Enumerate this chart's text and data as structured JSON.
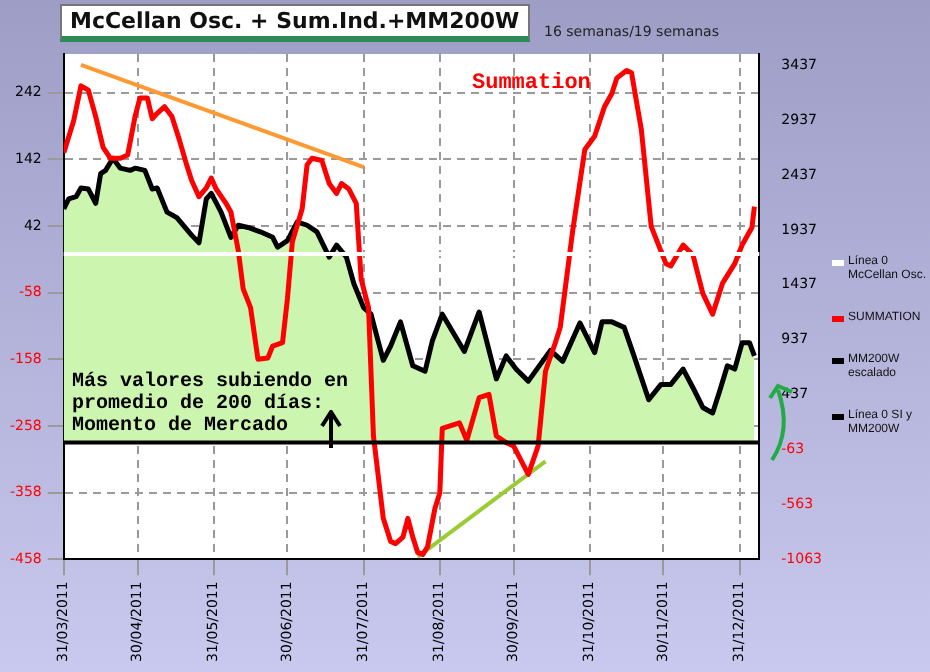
{
  "chart_data": {
    "type": "line",
    "title": "McCellan Osc. + Sum.Ind.+MM200W",
    "subtitle": "16 semanas/19 semanas",
    "annotations": [
      "Summation",
      "Más valores subiendo en promedio de 200 días: Momento de Mercado"
    ],
    "xlim": [
      "2011-03-31",
      "2012-01-08"
    ],
    "xticks": [
      {
        "value": "2011-03-31",
        "label": "31/03/2011"
      },
      {
        "value": "2011-04-30",
        "label": "30/04/2011"
      },
      {
        "value": "2011-05-31",
        "label": "31/05/2011"
      },
      {
        "value": "2011-06-30",
        "label": "30/06/2011"
      },
      {
        "value": "2011-07-31",
        "label": "31/07/2011"
      },
      {
        "value": "2011-08-31",
        "label": "31/08/2011"
      },
      {
        "value": "2011-09-30",
        "label": "30/09/2011"
      },
      {
        "value": "2011-10-31",
        "label": "31/10/2011"
      },
      {
        "value": "2011-11-30",
        "label": "30/11/2011"
      },
      {
        "value": "2011-12-31",
        "label": "31/12/2011"
      }
    ],
    "ylim": [
      -458,
      300
    ],
    "yticks": [
      -458,
      -358,
      -258,
      -158,
      -58,
      42,
      142,
      242
    ],
    "y2lim": [
      -1063,
      3540
    ],
    "y2ticks": [
      -1063,
      -563,
      -63,
      437,
      937,
      1437,
      1937,
      2437,
      2937,
      3437
    ],
    "grid": true,
    "legend": "right",
    "ref_lines": [
      {
        "axis": "y",
        "value": 0,
        "label": "Línea 0 McCellan Osc.",
        "color": "#ffffff"
      },
      {
        "axis": "y2",
        "value": 0,
        "label": "Línea 0 SI y MM200W",
        "color": "#000000"
      }
    ],
    "series": [
      {
        "name": "SUMMATION",
        "type": "line",
        "axis": "y2",
        "color": "#ff0000",
        "x": [
          "2011-03-31",
          "2011-04-04",
          "2011-04-07",
          "2011-04-10",
          "2011-04-13",
          "2011-04-16",
          "2011-04-19",
          "2011-04-23",
          "2011-04-26",
          "2011-04-29",
          "2011-05-01",
          "2011-05-04",
          "2011-05-06",
          "2011-05-08",
          "2011-05-11",
          "2011-05-14",
          "2011-05-17",
          "2011-05-20",
          "2011-05-22",
          "2011-05-25",
          "2011-05-28",
          "2011-05-30",
          "2011-06-01",
          "2011-06-05",
          "2011-06-07",
          "2011-06-10",
          "2011-06-12",
          "2011-06-15",
          "2011-06-18",
          "2011-06-22",
          "2011-06-24",
          "2011-06-28",
          "2011-06-30",
          "2011-07-02",
          "2011-07-06",
          "2011-07-08",
          "2011-07-10",
          "2011-07-14",
          "2011-07-17",
          "2011-07-20",
          "2011-07-22",
          "2011-07-25",
          "2011-07-28",
          "2011-07-30",
          "2011-08-02",
          "2011-08-04",
          "2011-08-08",
          "2011-08-11",
          "2011-08-13",
          "2011-08-16",
          "2011-08-18",
          "2011-08-20",
          "2011-08-22",
          "2011-08-24",
          "2011-08-26",
          "2011-08-29",
          "2011-08-31",
          "2011-09-01",
          "2011-09-08",
          "2011-09-11",
          "2011-09-16",
          "2011-09-20",
          "2011-09-23",
          "2011-09-27",
          "2011-09-30",
          "2011-10-06",
          "2011-10-10",
          "2011-10-13",
          "2011-10-17",
          "2011-10-19",
          "2011-10-24",
          "2011-10-29",
          "2011-11-02",
          "2011-11-06",
          "2011-11-09",
          "2011-11-11",
          "2011-11-15",
          "2011-11-17",
          "2011-11-21",
          "2011-11-25",
          "2011-12-01",
          "2011-12-03",
          "2011-12-08",
          "2011-12-12",
          "2011-12-16",
          "2011-12-20",
          "2011-12-24",
          "2011-12-29",
          "2012-01-01",
          "2012-01-05",
          "2012-01-06"
        ],
        "values": [
          2640,
          2930,
          3250,
          3210,
          2970,
          2690,
          2590,
          2590,
          2620,
          2970,
          3140,
          3140,
          2950,
          3000,
          3060,
          2970,
          2760,
          2530,
          2390,
          2240,
          2320,
          2410,
          2310,
          2180,
          2100,
          1750,
          1400,
          1230,
          760,
          770,
          880,
          910,
          1310,
          1830,
          2130,
          2530,
          2590,
          2570,
          2360,
          2270,
          2360,
          2310,
          2180,
          1490,
          1230,
          60,
          -690,
          -900,
          -920,
          -860,
          -690,
          -860,
          -1000,
          -1020,
          -950,
          -600,
          -460,
          130,
          180,
          20,
          410,
          440,
          60,
          0,
          -30,
          -290,
          -30,
          650,
          910,
          1050,
          1920,
          2670,
          2790,
          3060,
          3180,
          3320,
          3390,
          3370,
          2850,
          1970,
          1630,
          1610,
          1800,
          1710,
          1360,
          1170,
          1450,
          1630,
          1800,
          1960,
          2150
        ]
      },
      {
        "name": "MM200W escalado",
        "type": "area",
        "axis": "y2",
        "color": "#000000",
        "x": [
          "2011-03-31",
          "2011-04-02",
          "2011-04-05",
          "2011-04-07",
          "2011-04-10",
          "2011-04-13",
          "2011-04-15",
          "2011-04-17",
          "2011-04-20",
          "2011-04-23",
          "2011-04-27",
          "2011-04-29",
          "2011-05-03",
          "2011-05-06",
          "2011-05-08",
          "2011-05-12",
          "2011-05-16",
          "2011-05-22",
          "2011-05-25",
          "2011-05-28",
          "2011-05-30",
          "2011-06-03",
          "2011-06-07",
          "2011-06-10",
          "2011-06-14",
          "2011-06-19",
          "2011-06-24",
          "2011-06-26",
          "2011-06-30",
          "2011-07-04",
          "2011-07-08",
          "2011-07-12",
          "2011-07-17",
          "2011-07-20",
          "2011-07-24",
          "2011-07-27",
          "2011-07-31",
          "2011-08-03",
          "2011-08-08",
          "2011-08-11",
          "2011-08-15",
          "2011-08-20",
          "2011-08-25",
          "2011-08-28",
          "2011-09-01",
          "2011-09-10",
          "2011-09-16",
          "2011-09-23",
          "2011-09-27",
          "2011-10-01",
          "2011-10-06",
          "2011-10-15",
          "2011-10-20",
          "2011-10-27",
          "2011-11-02",
          "2011-11-05",
          "2011-11-09",
          "2011-11-14",
          "2011-11-18",
          "2011-11-24",
          "2011-11-29",
          "2011-12-03",
          "2011-12-08",
          "2011-12-12",
          "2011-12-16",
          "2011-12-20",
          "2011-12-23",
          "2011-12-26",
          "2011-12-29",
          "2012-01-01",
          "2012-01-04",
          "2012-01-06"
        ],
        "values": [
          2130,
          2220,
          2240,
          2320,
          2310,
          2180,
          2450,
          2480,
          2590,
          2500,
          2480,
          2500,
          2480,
          2310,
          2320,
          2100,
          2050,
          1890,
          1820,
          2220,
          2270,
          2100,
          1870,
          1980,
          1960,
          1920,
          1870,
          1780,
          1840,
          2010,
          1980,
          1920,
          1690,
          1800,
          1690,
          1450,
          1230,
          1170,
          750,
          880,
          1100,
          700,
          650,
          930,
          1170,
          830,
          1190,
          580,
          790,
          670,
          560,
          840,
          740,
          1090,
          820,
          1100,
          1100,
          1050,
          790,
          390,
          530,
          530,
          670,
          500,
          320,
          270,
          480,
          700,
          670,
          910,
          910,
          790
        ]
      },
      {
        "type": "line",
        "axis": "y2",
        "color": "#ff9933",
        "x": [
          "2011-04-07",
          "2011-07-31"
        ],
        "values": [
          3440,
          2510
        ]
      },
      {
        "type": "line",
        "axis": "y2",
        "color": "#99cc33",
        "x": [
          "2011-08-22",
          "2011-10-13"
        ],
        "values": [
          -1040,
          -170
        ]
      }
    ]
  }
}
